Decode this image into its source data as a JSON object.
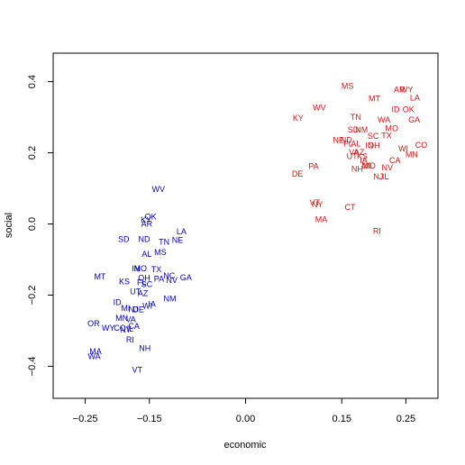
{
  "chart_data": {
    "type": "scatter",
    "xlabel": "economic",
    "ylabel": "social",
    "xlim": [
      -0.3,
      0.3
    ],
    "ylim": [
      -0.49,
      0.48
    ],
    "x_ticks": [
      {
        "value": -0.25,
        "label": "−0.25"
      },
      {
        "value": -0.15,
        "label": "−0.15"
      },
      {
        "value": 0.0,
        "label": "0.00"
      },
      {
        "value": 0.15,
        "label": "0.15"
      },
      {
        "value": 0.25,
        "label": "0.25"
      }
    ],
    "y_ticks": [
      {
        "value": 0.4,
        "label": "0.4"
      },
      {
        "value": 0.2,
        "label": "0.2"
      },
      {
        "value": 0.0,
        "label": "0.0"
      },
      {
        "value": -0.2,
        "label": "−0.2"
      },
      {
        "value": -0.4,
        "label": "−0.4"
      }
    ],
    "grid": false,
    "series": [
      {
        "color": "#0000cc",
        "points": [
          {
            "label": "WV",
            "x": -0.136,
            "y": 0.097
          },
          {
            "label": "OK",
            "x": -0.148,
            "y": 0.02
          },
          {
            "label": "KY",
            "x": -0.155,
            "y": 0.012
          },
          {
            "label": "AR",
            "x": -0.154,
            "y": 0.0
          },
          {
            "label": "LA",
            "x": -0.1,
            "y": -0.022
          },
          {
            "label": "SD",
            "x": -0.19,
            "y": -0.043
          },
          {
            "label": "ND",
            "x": -0.158,
            "y": -0.043
          },
          {
            "label": "TN",
            "x": -0.127,
            "y": -0.05
          },
          {
            "label": "NE",
            "x": -0.106,
            "y": -0.045
          },
          {
            "label": "MS",
            "x": -0.133,
            "y": -0.08
          },
          {
            "label": "AL",
            "x": -0.154,
            "y": -0.085
          },
          {
            "label": "IN",
            "x": -0.171,
            "y": -0.125
          },
          {
            "label": "MO",
            "x": -0.164,
            "y": -0.125
          },
          {
            "label": "TX",
            "x": -0.139,
            "y": -0.128
          },
          {
            "label": "MT",
            "x": -0.227,
            "y": -0.148
          },
          {
            "label": "OH",
            "x": -0.158,
            "y": -0.152
          },
          {
            "label": "NC",
            "x": -0.119,
            "y": -0.145
          },
          {
            "label": "PA",
            "x": -0.135,
            "y": -0.155
          },
          {
            "label": "NV",
            "x": -0.115,
            "y": -0.158
          },
          {
            "label": "GA",
            "x": -0.093,
            "y": -0.15
          },
          {
            "label": "KS",
            "x": -0.189,
            "y": -0.162
          },
          {
            "label": "FL",
            "x": -0.162,
            "y": -0.165
          },
          {
            "label": "SC",
            "x": -0.154,
            "y": -0.17
          },
          {
            "label": "UT",
            "x": -0.172,
            "y": -0.19
          },
          {
            "label": "AZ",
            "x": -0.16,
            "y": -0.195
          },
          {
            "label": "NM",
            "x": -0.118,
            "y": -0.21
          },
          {
            "label": "ID",
            "x": -0.2,
            "y": -0.22
          },
          {
            "label": "IA",
            "x": -0.146,
            "y": -0.225
          },
          {
            "label": "WI",
            "x": -0.153,
            "y": -0.23
          },
          {
            "label": "MI",
            "x": -0.187,
            "y": -0.237
          },
          {
            "label": "NJ",
            "x": -0.175,
            "y": -0.24
          },
          {
            "label": "DE",
            "x": -0.167,
            "y": -0.24
          },
          {
            "label": "MN",
            "x": -0.193,
            "y": -0.265
          },
          {
            "label": "VA",
            "x": -0.179,
            "y": -0.268
          },
          {
            "label": "OR",
            "x": -0.237,
            "y": -0.28
          },
          {
            "label": "CA",
            "x": -0.174,
            "y": -0.288
          },
          {
            "label": "WY",
            "x": -0.214,
            "y": -0.292
          },
          {
            "label": "CO",
            "x": -0.196,
            "y": -0.292
          },
          {
            "label": "NY",
            "x": -0.187,
            "y": -0.297
          },
          {
            "label": "IL",
            "x": -0.18,
            "y": -0.295
          },
          {
            "label": "RI",
            "x": -0.18,
            "y": -0.325
          },
          {
            "label": "NH",
            "x": -0.157,
            "y": -0.35
          },
          {
            "label": "MA",
            "x": -0.234,
            "y": -0.358
          },
          {
            "label": "WA",
            "x": -0.236,
            "y": -0.372
          },
          {
            "label": "VT",
            "x": -0.169,
            "y": -0.41
          }
        ]
      },
      {
        "color": "#dd1111",
        "points": [
          {
            "label": "MS",
            "x": 0.159,
            "y": 0.387
          },
          {
            "label": "AR",
            "x": 0.24,
            "y": 0.378
          },
          {
            "label": "WY",
            "x": 0.251,
            "y": 0.378
          },
          {
            "label": "LA",
            "x": 0.264,
            "y": 0.355
          },
          {
            "label": "MT",
            "x": 0.201,
            "y": 0.352
          },
          {
            "label": "ID",
            "x": 0.234,
            "y": 0.322
          },
          {
            "label": "OK",
            "x": 0.254,
            "y": 0.322
          },
          {
            "label": "WV",
            "x": 0.115,
            "y": 0.327
          },
          {
            "label": "KY",
            "x": 0.082,
            "y": 0.298
          },
          {
            "label": "TN",
            "x": 0.172,
            "y": 0.3
          },
          {
            "label": "WA",
            "x": 0.216,
            "y": 0.292
          },
          {
            "label": "GA",
            "x": 0.263,
            "y": 0.292
          },
          {
            "label": "SD",
            "x": 0.168,
            "y": 0.265
          },
          {
            "label": "NM",
            "x": 0.181,
            "y": 0.265
          },
          {
            "label": "MO",
            "x": 0.228,
            "y": 0.268
          },
          {
            "label": "SC",
            "x": 0.199,
            "y": 0.247
          },
          {
            "label": "TX",
            "x": 0.22,
            "y": 0.248
          },
          {
            "label": "NE",
            "x": 0.145,
            "y": 0.235
          },
          {
            "label": "ND",
            "x": 0.157,
            "y": 0.235
          },
          {
            "label": "FL",
            "x": 0.16,
            "y": 0.225
          },
          {
            "label": "AL",
            "x": 0.172,
            "y": 0.225
          },
          {
            "label": "IN",
            "x": 0.193,
            "y": 0.22
          },
          {
            "label": "OH",
            "x": 0.2,
            "y": 0.22
          },
          {
            "label": "WI",
            "x": 0.246,
            "y": 0.212
          },
          {
            "label": "CO",
            "x": 0.274,
            "y": 0.222
          },
          {
            "label": "VA",
            "x": 0.169,
            "y": 0.202
          },
          {
            "label": "AZ",
            "x": 0.177,
            "y": 0.202
          },
          {
            "label": "UT",
            "x": 0.166,
            "y": 0.19
          },
          {
            "label": "KS",
            "x": 0.182,
            "y": 0.19
          },
          {
            "label": "MN",
            "x": 0.259,
            "y": 0.195
          },
          {
            "label": "IA",
            "x": 0.184,
            "y": 0.178
          },
          {
            "label": "CA",
            "x": 0.233,
            "y": 0.178
          },
          {
            "label": "MI",
            "x": 0.188,
            "y": 0.163
          },
          {
            "label": "MD",
            "x": 0.193,
            "y": 0.163
          },
          {
            "label": "NV",
            "x": 0.221,
            "y": 0.158
          },
          {
            "label": "PA",
            "x": 0.106,
            "y": 0.162
          },
          {
            "label": "NH",
            "x": 0.174,
            "y": 0.155
          },
          {
            "label": "NJ",
            "x": 0.207,
            "y": 0.133
          },
          {
            "label": "IL",
            "x": 0.218,
            "y": 0.133
          },
          {
            "label": "DE",
            "x": 0.081,
            "y": 0.14
          },
          {
            "label": "VT",
            "x": 0.108,
            "y": 0.06
          },
          {
            "label": "NY",
            "x": 0.112,
            "y": 0.055
          },
          {
            "label": "CT",
            "x": 0.163,
            "y": 0.047
          },
          {
            "label": "MA",
            "x": 0.118,
            "y": 0.013
          },
          {
            "label": "RI",
            "x": 0.205,
            "y": -0.02
          }
        ]
      }
    ]
  }
}
